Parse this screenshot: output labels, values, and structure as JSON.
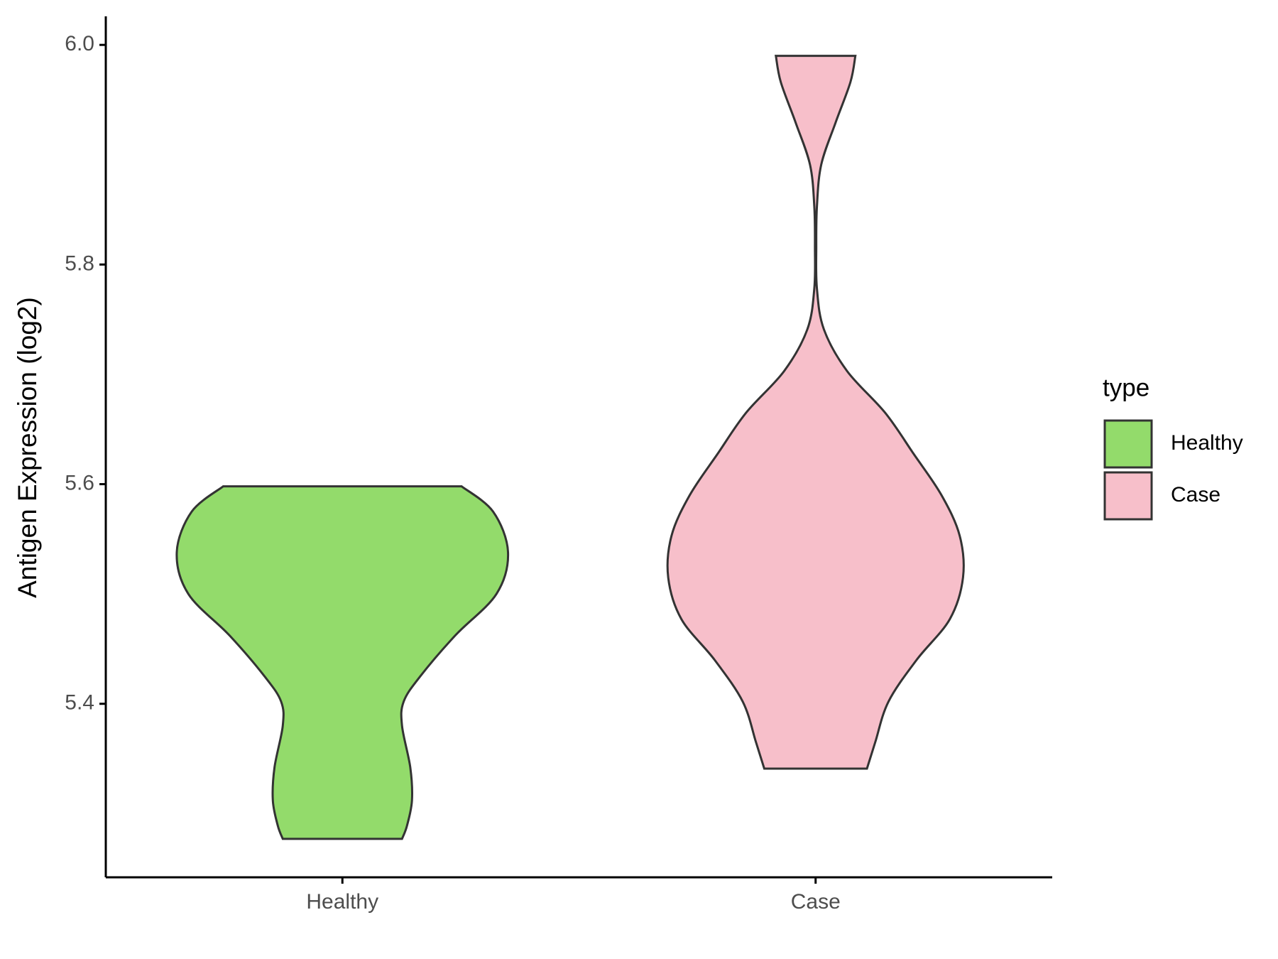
{
  "chart_data": {
    "type": "violin",
    "ylabel": "Antigen Expression (log2)",
    "categories": [
      "Healthy",
      "Case"
    ],
    "legend_title": "type",
    "legend": "right",
    "series": [
      {
        "name": "Healthy",
        "color": "#93db6b",
        "values": [
          5.598,
          5.575,
          5.538,
          5.5,
          5.462,
          5.425,
          5.402,
          5.38,
          5.342,
          5.312,
          5.289,
          5.277
        ],
        "density": [
          0.72,
          0.91,
          1.0,
          0.93,
          0.68,
          0.47,
          0.37,
          0.36,
          0.41,
          0.42,
          0.39,
          0.36
        ]
      },
      {
        "name": "Case",
        "color": "#f7bfca",
        "values": [
          5.99,
          5.966,
          5.929,
          5.891,
          5.853,
          5.816,
          5.778,
          5.741,
          5.703,
          5.665,
          5.628,
          5.59,
          5.553,
          5.515,
          5.477,
          5.44,
          5.402,
          5.365,
          5.341
        ],
        "density": [
          0.24,
          0.21,
          0.12,
          0.034,
          0.008,
          0.004,
          0.008,
          0.05,
          0.19,
          0.42,
          0.59,
          0.76,
          0.87,
          0.89,
          0.81,
          0.61,
          0.44,
          0.36,
          0.31
        ]
      }
    ],
    "ylim": [
      5.242,
      6.026
    ],
    "yticks": [
      {
        "value": 5.4,
        "label": "5.4"
      },
      {
        "value": 5.6,
        "label": "5.6"
      },
      {
        "value": 5.8,
        "label": "5.8"
      },
      {
        "value": 6.0,
        "label": "6.0"
      }
    ]
  }
}
